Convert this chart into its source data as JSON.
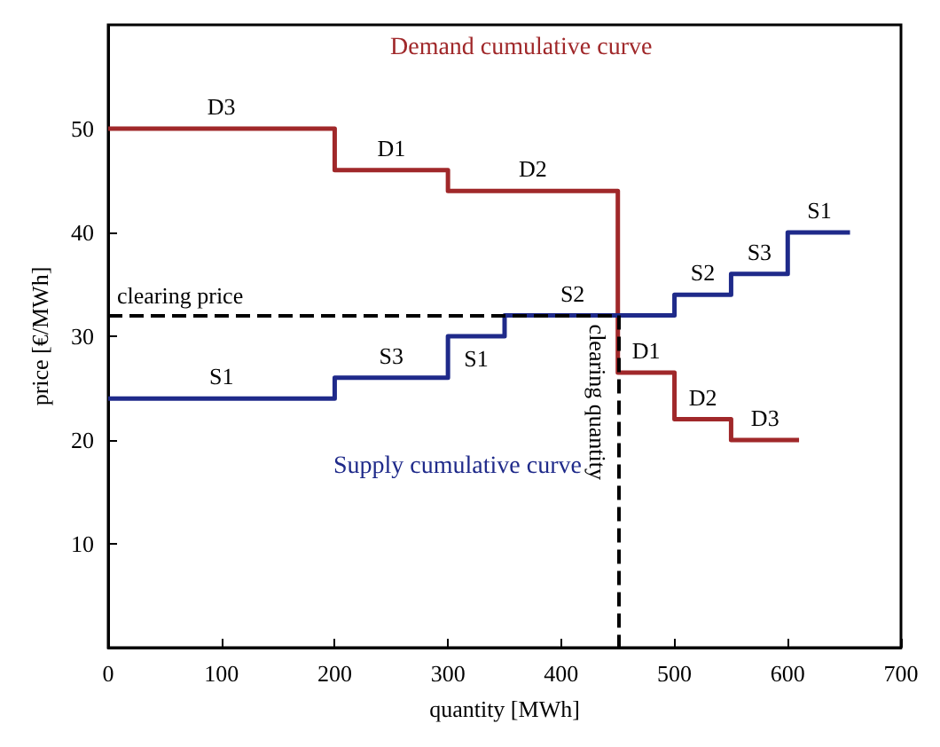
{
  "chart_data": {
    "type": "step",
    "xlabel": "quantity [MWh]",
    "ylabel": "price [€/MWh]",
    "xlim": [
      0,
      700
    ],
    "xticks": [
      0,
      100,
      200,
      300,
      400,
      500,
      600,
      700
    ],
    "ylim": [
      0,
      60
    ],
    "yticks": [
      10,
      20,
      30,
      40,
      50
    ],
    "grid": false,
    "legend": false,
    "marker": "none",
    "line_style": "solid",
    "series": [
      {
        "name": "Demand cumulative curve",
        "color": "#a0282a",
        "x": [
          0,
          200,
          300,
          450,
          500,
          550,
          610
        ],
        "values": [
          50,
          46,
          44,
          26.5,
          22,
          20,
          20
        ]
      },
      {
        "name": "Supply cumulative curve",
        "color": "#1f2a8a",
        "x": [
          0,
          200,
          300,
          350,
          500,
          550,
          600,
          655
        ],
        "values": [
          24,
          26,
          30,
          32,
          34,
          36,
          40,
          40
        ]
      }
    ],
    "ref_lines": [
      {
        "axis": "y",
        "value": 32,
        "label": "clearing price",
        "color": "#000000",
        "line_style": "dashed"
      },
      {
        "axis": "x",
        "value": 450,
        "label": "clearing quantity",
        "color": "#000000",
        "line_style": "dashed"
      }
    ],
    "annotations": [
      {
        "text": "D3",
        "x": 100,
        "y": 50
      },
      {
        "text": "D1",
        "x": 250,
        "y": 46
      },
      {
        "text": "D2",
        "x": 375,
        "y": 44
      },
      {
        "text": "D1",
        "x": 475,
        "y": 26.5
      },
      {
        "text": "D2",
        "x": 525,
        "y": 22
      },
      {
        "text": "D3",
        "x": 580,
        "y": 20
      },
      {
        "text": "S1",
        "x": 100,
        "y": 24
      },
      {
        "text": "S3",
        "x": 250,
        "y": 26
      },
      {
        "text": "S1",
        "x": 325,
        "y": 30
      },
      {
        "text": "S2",
        "x": 410,
        "y": 32
      },
      {
        "text": "S2",
        "x": 525,
        "y": 34
      },
      {
        "text": "S3",
        "x": 575,
        "y": 36
      },
      {
        "text": "S1",
        "x": 628,
        "y": 40
      }
    ]
  }
}
